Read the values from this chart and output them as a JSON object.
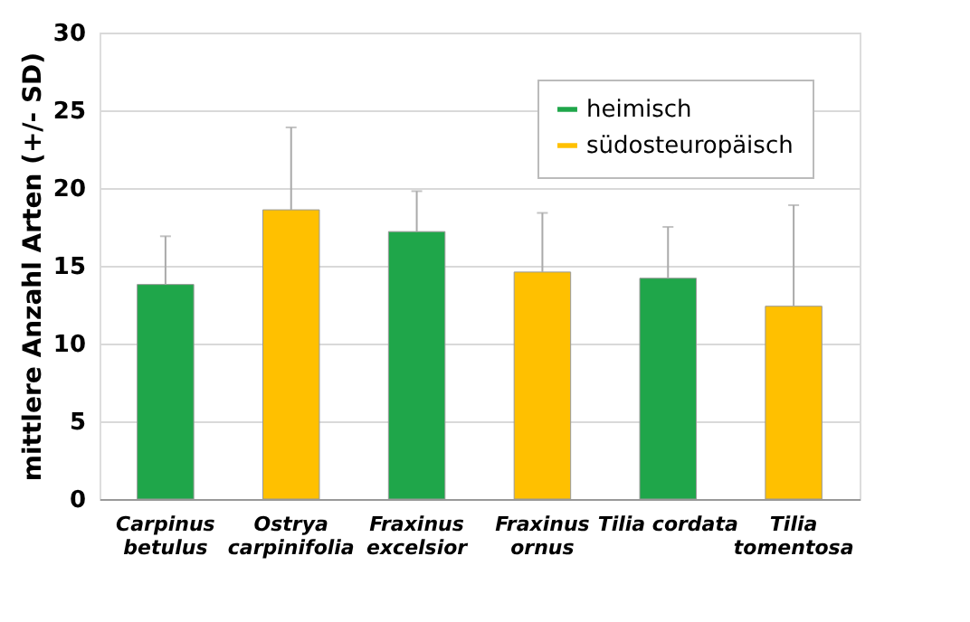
{
  "chart_data": {
    "type": "bar",
    "ylabel": "mittlere Anzahl Arten (+/- SD)",
    "categories": [
      "Carpinus betulus",
      "Ostrya carpinifolia",
      "Fraxinus excelsior",
      "Fraxinus ornus",
      "Tilia cordata",
      "Tilia tomentosa"
    ],
    "series": [
      {
        "name": "heimisch",
        "color": "#1fa64a",
        "values": [
          13.8,
          null,
          17.2,
          null,
          14.2,
          null
        ],
        "errors": [
          [
            13.8,
            16.9
          ],
          null,
          [
            17.2,
            19.8
          ],
          null,
          [
            14.2,
            17.5
          ],
          null
        ]
      },
      {
        "name": "südosteuropäisch",
        "color": "#ffc000",
        "values": [
          null,
          18.6,
          null,
          14.6,
          null,
          12.4
        ],
        "errors": [
          null,
          [
            18.6,
            23.9
          ],
          null,
          [
            14.6,
            18.4
          ],
          null,
          [
            12.4,
            18.9
          ]
        ]
      }
    ],
    "ylim": [
      0,
      30
    ],
    "yticks": [
      0,
      5,
      10,
      15,
      20,
      25,
      30
    ],
    "grid": "y",
    "legend": "top right"
  }
}
